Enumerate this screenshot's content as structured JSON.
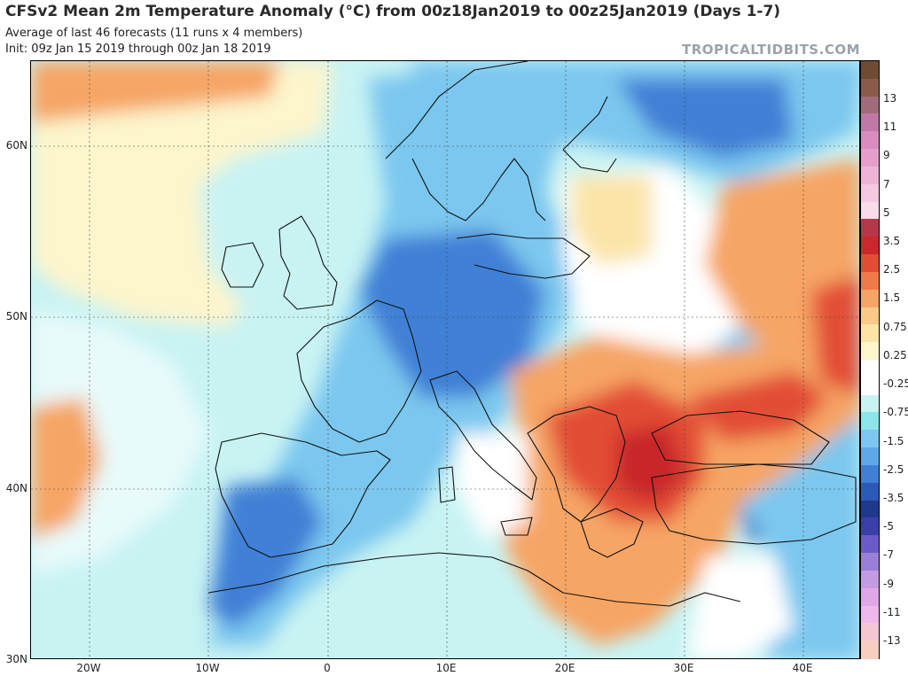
{
  "header": {
    "title": "CFSv2 Mean 2m Temperature Anomaly (°C) from 00z18Jan2019 to 00z25Jan2019 (Days 1-7)",
    "subtitle": "Average of last 46 forecasts (11 runs x 4 members)",
    "init": "Init: 09z Jan 15 2019 through 00z Jan 18 2019",
    "brand": "TROPICALTIDBITS.COM"
  },
  "axes": {
    "lat_labels": [
      "60N",
      "50N",
      "40N",
      "30N"
    ],
    "lon_labels": [
      "20W",
      "10W",
      "0",
      "10E",
      "20E",
      "30E",
      "40E"
    ]
  },
  "colorbar": {
    "labels": [
      "13",
      "11",
      "9",
      "7",
      "5",
      "3.5",
      "2.5",
      "1.5",
      "0.75",
      "0.25",
      "-0.25",
      "-0.75",
      "-1.5",
      "-2.5",
      "-3.5",
      "-5",
      "-7",
      "-9",
      "-11",
      "-13"
    ],
    "colors_top_to_bottom": [
      "#6e4b33",
      "#8a5a4b",
      "#a06b7a",
      "#c078a6",
      "#d98cc0",
      "#e59fcd",
      "#eeb4d7",
      "#f4c9e2",
      "#f9dcea",
      "#b7374a",
      "#c9282c",
      "#e24d35",
      "#ef7a47",
      "#f6a565",
      "#f9c987",
      "#fbe4a7",
      "#fdf5cc",
      "#ffffff",
      "#ffffff",
      "#c9f3f3",
      "#8ae6e8",
      "#7cc7ef",
      "#5ea8ea",
      "#3f80d6",
      "#2b5ab8",
      "#1f3a8c",
      "#3b3fa8",
      "#6a5cc8",
      "#9a7fd8",
      "#c39be0",
      "#e0a6e6",
      "#f0b7ea",
      "#f3c6d4",
      "#f6cfc1"
    ]
  },
  "colors": {
    "deep_blue": "#2b5ab8",
    "mid_blue": "#5ea8ea",
    "light_blue": "#8ae6e8",
    "pale_cyan": "#c9f3f3",
    "pale_yellow": "#fdf5cc",
    "light_orange": "#f6a565",
    "orange": "#ef7a47",
    "red": "#e24d35",
    "dark_red": "#c9282c"
  }
}
